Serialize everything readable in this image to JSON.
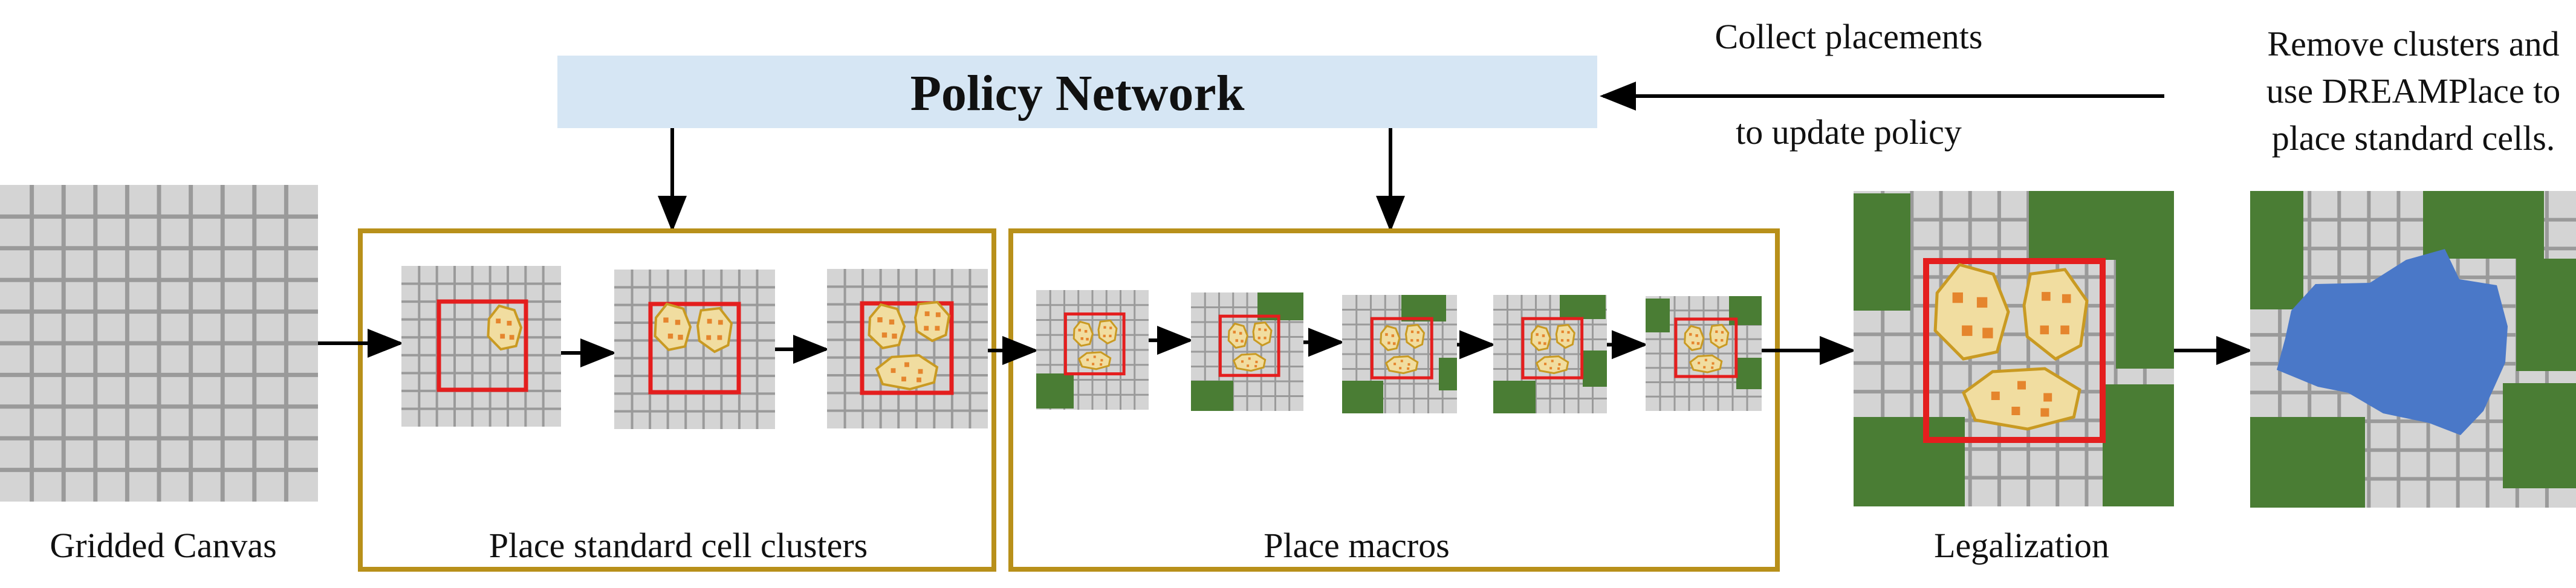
{
  "policy_network": {
    "label": "Policy Network"
  },
  "feedback": {
    "line1": "Collect placements",
    "line2": "to update policy"
  },
  "remove_note": {
    "line1": "Remove clusters and",
    "line2": "use DREAMPlace to",
    "line3": "place standard cells."
  },
  "stages": {
    "gridded_canvas": "Gridded Canvas",
    "place_clusters": "Place standard cell clusters",
    "place_macros": "Place macros",
    "legalization": "Legalization"
  },
  "colors": {
    "policy_box": "#d6e6f4",
    "group_border": "#b8901a",
    "grid_bg": "#d4d4d4",
    "grid_line": "#9a9a9a",
    "region": "#e41e1e",
    "cluster_fill": "#f1dda0",
    "cluster_stroke": "#c99a22",
    "cell": "#e5852d",
    "macro": "#4a7d34",
    "dreamplace": "#4a78c8"
  }
}
